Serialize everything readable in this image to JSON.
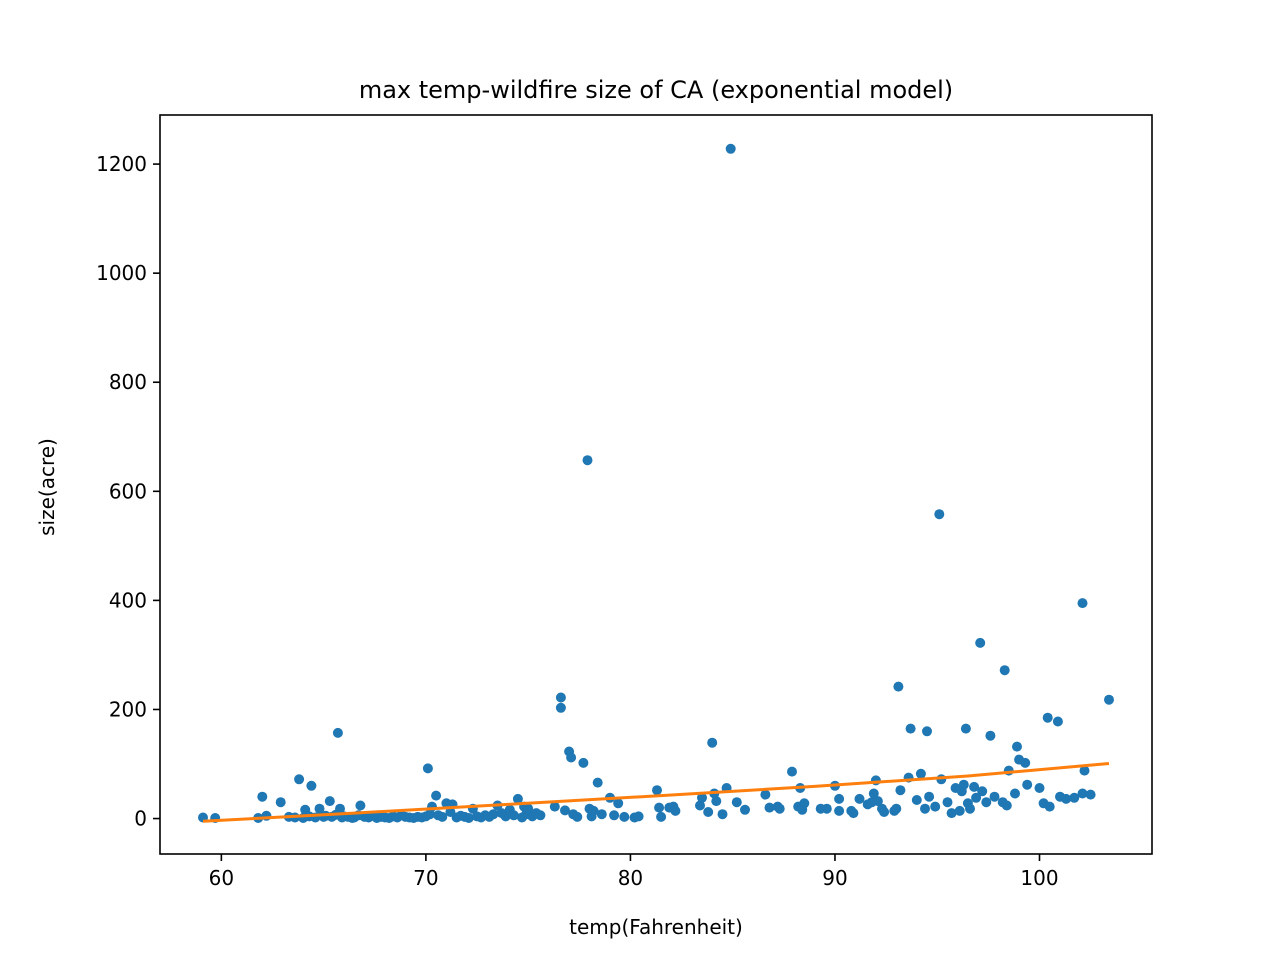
{
  "chart_data": {
    "type": "scatter",
    "title": "max temp-wildfire size of CA (exponential model)",
    "xlabel": "temp(Fahrenheit)",
    "ylabel": "size(acre)",
    "xlim": [
      57,
      105.5
    ],
    "ylim": [
      -65,
      1290
    ],
    "xticks": [
      60,
      70,
      80,
      90,
      100
    ],
    "yticks": [
      0,
      200,
      400,
      600,
      800,
      1000,
      1200
    ],
    "grid": false,
    "colors": {
      "points": "#1f77b4",
      "model": "#ff7f0e"
    },
    "series": [
      {
        "type": "scatter",
        "points": [
          [
            59.1,
            2
          ],
          [
            59.7,
            1
          ],
          [
            61.8,
            1
          ],
          [
            62.0,
            40
          ],
          [
            62.2,
            5
          ],
          [
            62.9,
            30
          ],
          [
            63.3,
            3
          ],
          [
            63.6,
            2
          ],
          [
            63.8,
            72
          ],
          [
            64.0,
            1
          ],
          [
            64.1,
            16
          ],
          [
            64.3,
            4
          ],
          [
            64.4,
            60
          ],
          [
            64.6,
            2
          ],
          [
            64.8,
            18
          ],
          [
            65.0,
            3
          ],
          [
            65.1,
            5
          ],
          [
            65.3,
            32
          ],
          [
            65.4,
            3
          ],
          [
            65.6,
            7
          ],
          [
            65.7,
            157
          ],
          [
            65.8,
            18
          ],
          [
            65.9,
            2
          ],
          [
            66.0,
            4
          ],
          [
            66.2,
            3
          ],
          [
            66.4,
            1
          ],
          [
            66.5,
            2
          ],
          [
            66.7,
            6
          ],
          [
            66.8,
            24
          ],
          [
            67.0,
            3
          ],
          [
            67.2,
            2
          ],
          [
            67.4,
            5
          ],
          [
            67.6,
            1
          ],
          [
            67.8,
            3
          ],
          [
            68.0,
            2
          ],
          [
            68.2,
            1
          ],
          [
            68.4,
            4
          ],
          [
            68.6,
            2
          ],
          [
            68.8,
            6
          ],
          [
            69.0,
            3
          ],
          [
            69.2,
            2
          ],
          [
            69.4,
            1
          ],
          [
            69.6,
            3
          ],
          [
            69.8,
            2
          ],
          [
            70.0,
            4
          ],
          [
            70.1,
            92
          ],
          [
            70.2,
            8
          ],
          [
            70.3,
            22
          ],
          [
            70.5,
            42
          ],
          [
            70.6,
            6
          ],
          [
            70.8,
            3
          ],
          [
            71.0,
            28
          ],
          [
            71.2,
            12
          ],
          [
            71.3,
            26
          ],
          [
            71.5,
            2
          ],
          [
            71.7,
            5
          ],
          [
            71.9,
            3
          ],
          [
            72.1,
            1
          ],
          [
            72.3,
            18
          ],
          [
            72.5,
            4
          ],
          [
            72.7,
            2
          ],
          [
            72.9,
            6
          ],
          [
            73.1,
            3
          ],
          [
            73.3,
            8
          ],
          [
            73.5,
            24
          ],
          [
            73.7,
            10
          ],
          [
            73.9,
            4
          ],
          [
            74.1,
            16
          ],
          [
            74.3,
            6
          ],
          [
            74.5,
            36
          ],
          [
            74.7,
            2
          ],
          [
            74.8,
            22
          ],
          [
            74.9,
            8
          ],
          [
            75.0,
            18
          ],
          [
            75.2,
            4
          ],
          [
            75.4,
            10
          ],
          [
            75.6,
            6
          ],
          [
            76.3,
            22
          ],
          [
            76.6,
            222
          ],
          [
            76.6,
            203
          ],
          [
            76.8,
            15
          ],
          [
            77.0,
            123
          ],
          [
            77.1,
            112
          ],
          [
            77.2,
            8
          ],
          [
            77.4,
            3
          ],
          [
            77.7,
            102
          ],
          [
            77.9,
            657
          ],
          [
            78.0,
            18
          ],
          [
            78.1,
            4
          ],
          [
            78.2,
            14
          ],
          [
            78.4,
            66
          ],
          [
            78.6,
            8
          ],
          [
            79.0,
            38
          ],
          [
            79.2,
            6
          ],
          [
            79.4,
            28
          ],
          [
            79.7,
            3
          ],
          [
            80.2,
            2
          ],
          [
            80.4,
            4
          ],
          [
            81.3,
            52
          ],
          [
            81.4,
            20
          ],
          [
            81.5,
            3
          ],
          [
            81.9,
            20
          ],
          [
            82.1,
            22
          ],
          [
            82.2,
            14
          ],
          [
            83.4,
            24
          ],
          [
            83.5,
            38
          ],
          [
            83.8,
            12
          ],
          [
            84.0,
            139
          ],
          [
            84.1,
            46
          ],
          [
            84.2,
            32
          ],
          [
            84.5,
            8
          ],
          [
            84.7,
            56
          ],
          [
            84.9,
            1228
          ],
          [
            85.2,
            30
          ],
          [
            85.6,
            16
          ],
          [
            86.6,
            44
          ],
          [
            86.8,
            20
          ],
          [
            87.2,
            22
          ],
          [
            87.3,
            18
          ],
          [
            87.9,
            86
          ],
          [
            88.2,
            22
          ],
          [
            88.3,
            56
          ],
          [
            88.4,
            16
          ],
          [
            88.5,
            28
          ],
          [
            89.3,
            18
          ],
          [
            89.6,
            18
          ],
          [
            90.0,
            60
          ],
          [
            90.2,
            36
          ],
          [
            90.2,
            14
          ],
          [
            90.8,
            14
          ],
          [
            90.9,
            10
          ],
          [
            91.2,
            36
          ],
          [
            91.6,
            26
          ],
          [
            91.8,
            30
          ],
          [
            91.9,
            46
          ],
          [
            92.0,
            70
          ],
          [
            92.1,
            32
          ],
          [
            92.3,
            18
          ],
          [
            92.4,
            12
          ],
          [
            92.9,
            14
          ],
          [
            93.0,
            18
          ],
          [
            93.1,
            242
          ],
          [
            93.2,
            52
          ],
          [
            93.6,
            75
          ],
          [
            93.7,
            165
          ],
          [
            94.0,
            34
          ],
          [
            94.2,
            82
          ],
          [
            94.4,
            18
          ],
          [
            94.5,
            160
          ],
          [
            94.6,
            40
          ],
          [
            94.9,
            22
          ],
          [
            95.1,
            558
          ],
          [
            95.2,
            72
          ],
          [
            95.5,
            30
          ],
          [
            95.7,
            10
          ],
          [
            95.9,
            56
          ],
          [
            96.1,
            14
          ],
          [
            96.2,
            50
          ],
          [
            96.3,
            62
          ],
          [
            96.4,
            165
          ],
          [
            96.5,
            28
          ],
          [
            96.6,
            18
          ],
          [
            96.8,
            58
          ],
          [
            96.9,
            38
          ],
          [
            97.1,
            322
          ],
          [
            97.2,
            50
          ],
          [
            97.4,
            30
          ],
          [
            97.6,
            152
          ],
          [
            97.8,
            40
          ],
          [
            98.2,
            30
          ],
          [
            98.3,
            272
          ],
          [
            98.4,
            24
          ],
          [
            98.5,
            88
          ],
          [
            98.8,
            46
          ],
          [
            98.9,
            132
          ],
          [
            99.0,
            108
          ],
          [
            99.3,
            102
          ],
          [
            99.4,
            62
          ],
          [
            100.0,
            56
          ],
          [
            100.2,
            28
          ],
          [
            100.4,
            185
          ],
          [
            100.5,
            22
          ],
          [
            100.9,
            178
          ],
          [
            101.0,
            40
          ],
          [
            101.3,
            36
          ],
          [
            101.7,
            38
          ],
          [
            102.1,
            395
          ],
          [
            102.1,
            46
          ],
          [
            102.2,
            88
          ],
          [
            102.5,
            44
          ],
          [
            103.4,
            218
          ]
        ]
      },
      {
        "type": "line",
        "points": [
          [
            59.1,
            -5
          ],
          [
            66.5,
            10
          ],
          [
            74.0,
            26
          ],
          [
            81.5,
            42
          ],
          [
            89.0,
            59
          ],
          [
            96.5,
            78
          ],
          [
            103.4,
            101
          ]
        ]
      }
    ]
  }
}
